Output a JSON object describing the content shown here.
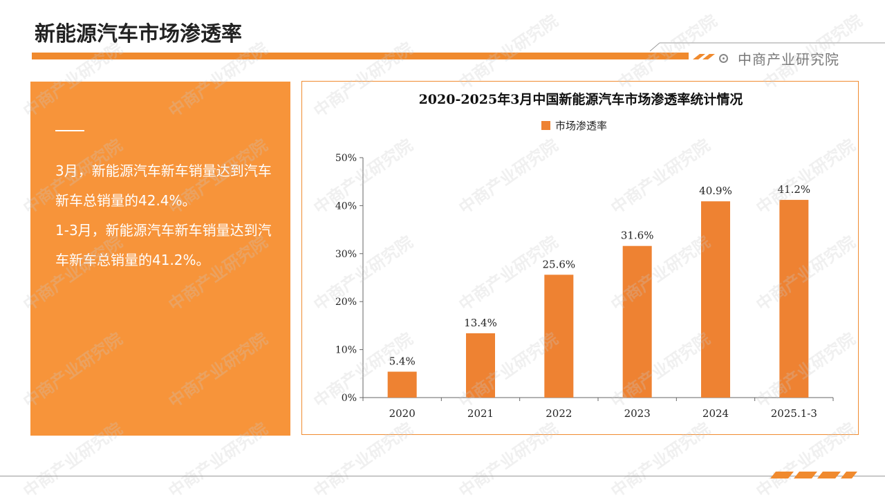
{
  "header": {
    "title": "新能源汽车市场渗透率",
    "brand": "中商产业研究院"
  },
  "summary": {
    "paragraphs": [
      "3月，新能源汽车新车销量达到汽车新车总销量的42.4%。",
      "1-3月，新能源汽车新车销量达到汽车新车总销量的41.2%。"
    ]
  },
  "colors": {
    "accent": "#F08A2E",
    "panel": "#F7943A",
    "bar": "#EE8232"
  },
  "chart_data": {
    "type": "bar",
    "title": "2020-2025年3月中国新能源汽车市场渗透率统计情况",
    "categories": [
      "2020",
      "2021",
      "2022",
      "2023",
      "2024",
      "2025.1-3"
    ],
    "series": [
      {
        "name": "市场渗透率",
        "values": [
          5.4,
          13.4,
          25.6,
          31.6,
          40.9,
          41.2
        ],
        "labels": [
          "5.4%",
          "13.4%",
          "25.6%",
          "31.6%",
          "40.9%",
          "41.2%"
        ]
      }
    ],
    "y_ticks": [
      "0%",
      "10%",
      "20%",
      "30%",
      "40%",
      "50%"
    ],
    "ylim": [
      0,
      50
    ],
    "legend_position": "top-center",
    "grid": false
  }
}
